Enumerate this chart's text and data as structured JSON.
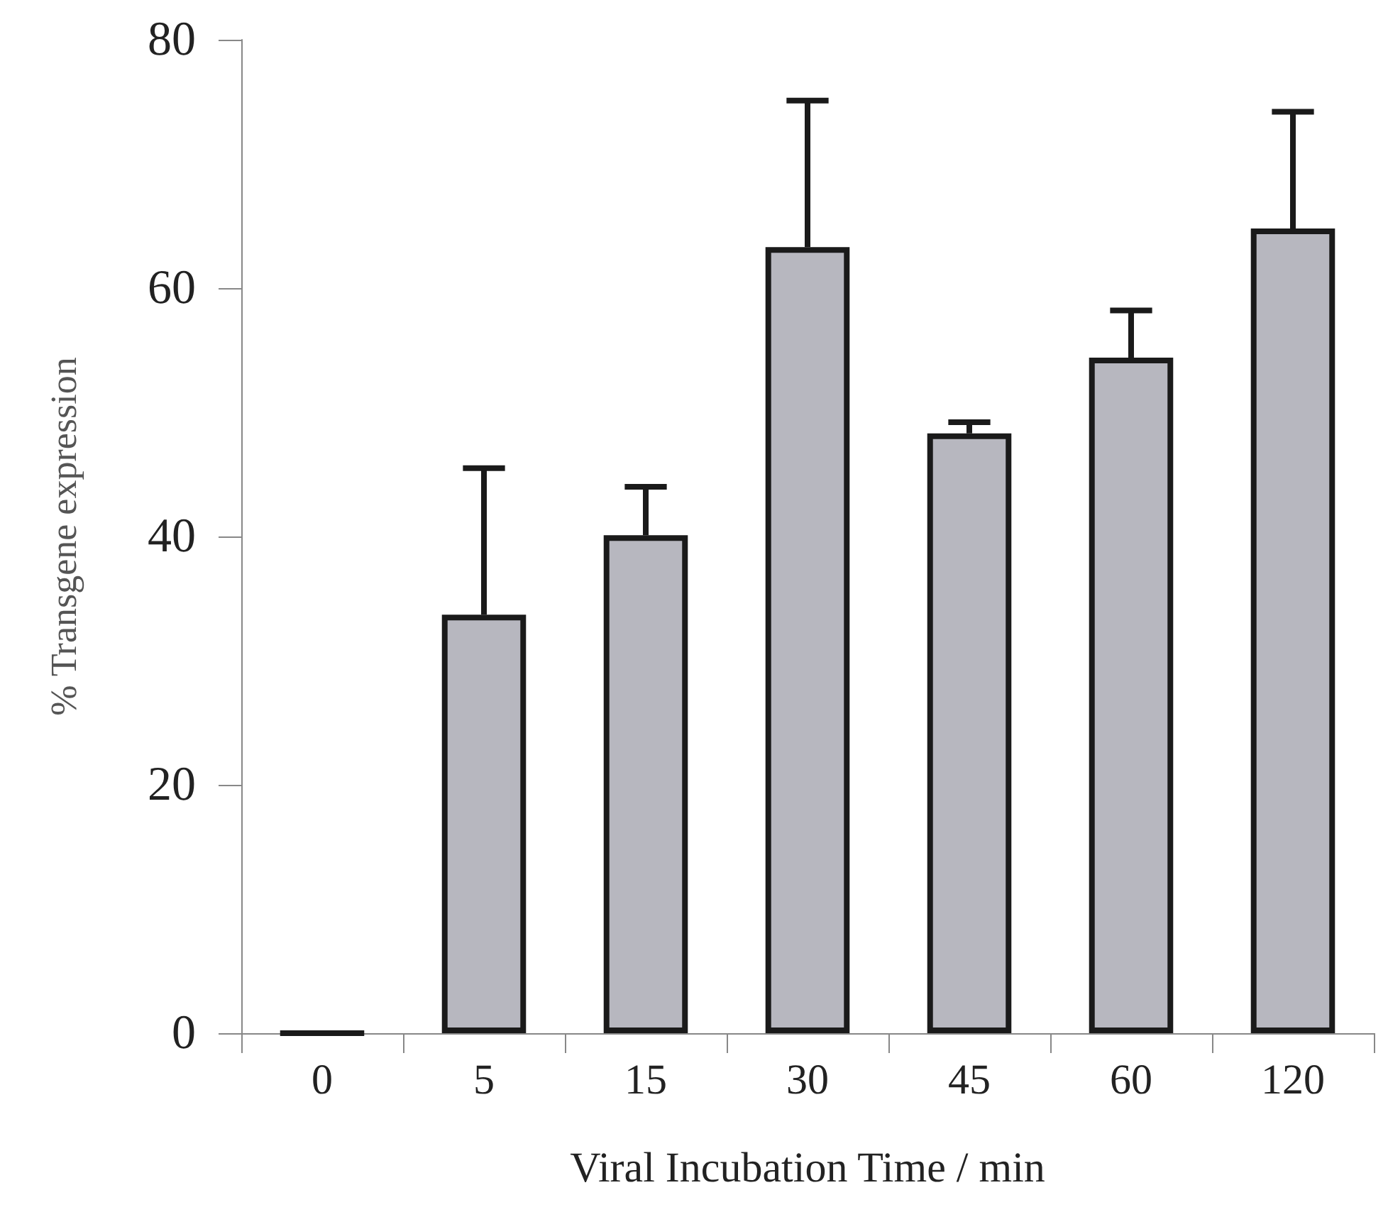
{
  "chart_data": {
    "type": "bar",
    "xlabel": "Viral Incubation Time / min",
    "ylabel": "% Transgene expression",
    "categories": [
      "0",
      "5",
      "15",
      "30",
      "45",
      "60",
      "120"
    ],
    "values": [
      0,
      33.7,
      40.1,
      63.3,
      48.3,
      54.4,
      64.8
    ],
    "errors": [
      null,
      [
        33.7,
        45.5
      ],
      [
        40.1,
        44.0
      ],
      [
        63.3,
        75.1
      ],
      [
        48.3,
        49.2
      ],
      [
        54.4,
        58.2
      ],
      [
        64.8,
        74.2
      ]
    ],
    "colors": [
      "#1a1a1a",
      "#b7b7bf",
      "#b7b7bf",
      "#b7b7bf",
      "#b7b7bf",
      "#b7b7bf",
      "#b7b7bf"
    ],
    "ylim": [
      0,
      80
    ],
    "yticks": [
      0,
      20,
      40,
      60,
      80
    ],
    "grid": false
  }
}
